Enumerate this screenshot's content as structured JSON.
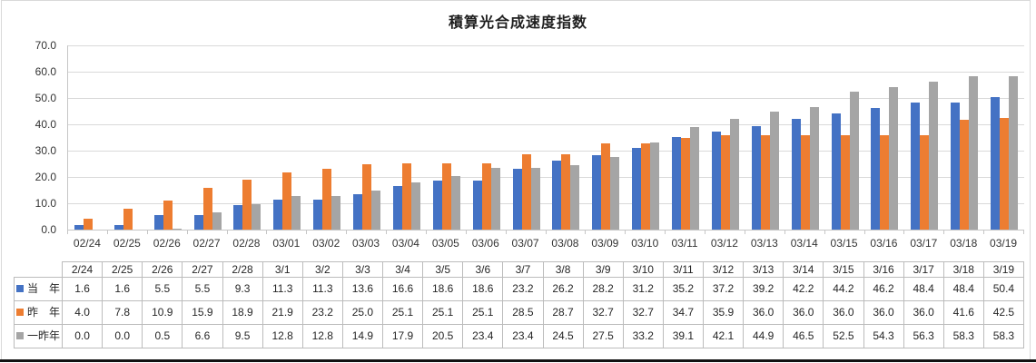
{
  "chart_data": {
    "type": "bar",
    "title": "積算光合成速度指数",
    "categories": [
      "02/24",
      "02/25",
      "02/26",
      "02/27",
      "02/28",
      "03/01",
      "03/02",
      "03/03",
      "03/04",
      "03/05",
      "03/06",
      "03/07",
      "03/08",
      "03/09",
      "03/10",
      "03/11",
      "03/12",
      "03/13",
      "03/14",
      "03/15",
      "03/16",
      "03/17",
      "03/18",
      "03/19"
    ],
    "series": [
      {
        "name": "当　年",
        "color": "#4472C4",
        "values": [
          1.6,
          1.6,
          5.5,
          5.5,
          9.3,
          11.3,
          11.3,
          13.6,
          16.6,
          18.6,
          18.6,
          23.2,
          26.2,
          28.2,
          31.2,
          35.2,
          37.2,
          39.2,
          42.2,
          44.2,
          46.2,
          48.4,
          48.4,
          50.4
        ]
      },
      {
        "name": "昨　年",
        "color": "#ED7D31",
        "values": [
          4.0,
          7.8,
          10.9,
          15.9,
          18.9,
          21.9,
          23.2,
          25.0,
          25.1,
          25.1,
          25.1,
          28.5,
          28.7,
          32.7,
          32.7,
          34.7,
          35.9,
          36.0,
          36.0,
          36.0,
          36.0,
          36.0,
          41.6,
          42.5
        ]
      },
      {
        "name": "一昨年",
        "color": "#A5A5A5",
        "values": [
          0.0,
          0.0,
          0.5,
          6.6,
          9.5,
          12.8,
          12.8,
          14.9,
          17.9,
          20.5,
          23.4,
          23.4,
          24.5,
          27.5,
          33.2,
          39.1,
          42.1,
          44.9,
          46.5,
          52.5,
          54.3,
          56.3,
          58.3,
          58.3
        ]
      }
    ],
    "xlabel": "",
    "ylabel": "",
    "ylim": [
      0,
      70
    ],
    "ytick_step": 10,
    "yticks": [
      "70.0",
      "60.0",
      "50.0",
      "40.0",
      "30.0",
      "20.0",
      "10.0",
      "0.0"
    ],
    "grid": true,
    "legend_position": "data-table-left",
    "data_table": {
      "column_headers": [
        "2/24",
        "2/25",
        "2/26",
        "2/27",
        "2/28",
        "3/1",
        "3/2",
        "3/3",
        "3/4",
        "3/5",
        "3/6",
        "3/7",
        "3/8",
        "3/9",
        "3/10",
        "3/11",
        "3/12",
        "3/13",
        "3/14",
        "3/15",
        "3/16",
        "3/17",
        "3/18",
        "3/19"
      ],
      "value_decimals": 1
    }
  },
  "colors": {
    "series_blue": "#4472C4",
    "series_orange": "#ED7D31",
    "series_gray": "#A5A5A5",
    "gridline": "#d9d9d9",
    "axis_line": "#c6c6c6",
    "table_border": "#bcbcbc",
    "frame_border": "#d9d9d9",
    "bottom_rule": "#111111",
    "text": "#262626"
  }
}
